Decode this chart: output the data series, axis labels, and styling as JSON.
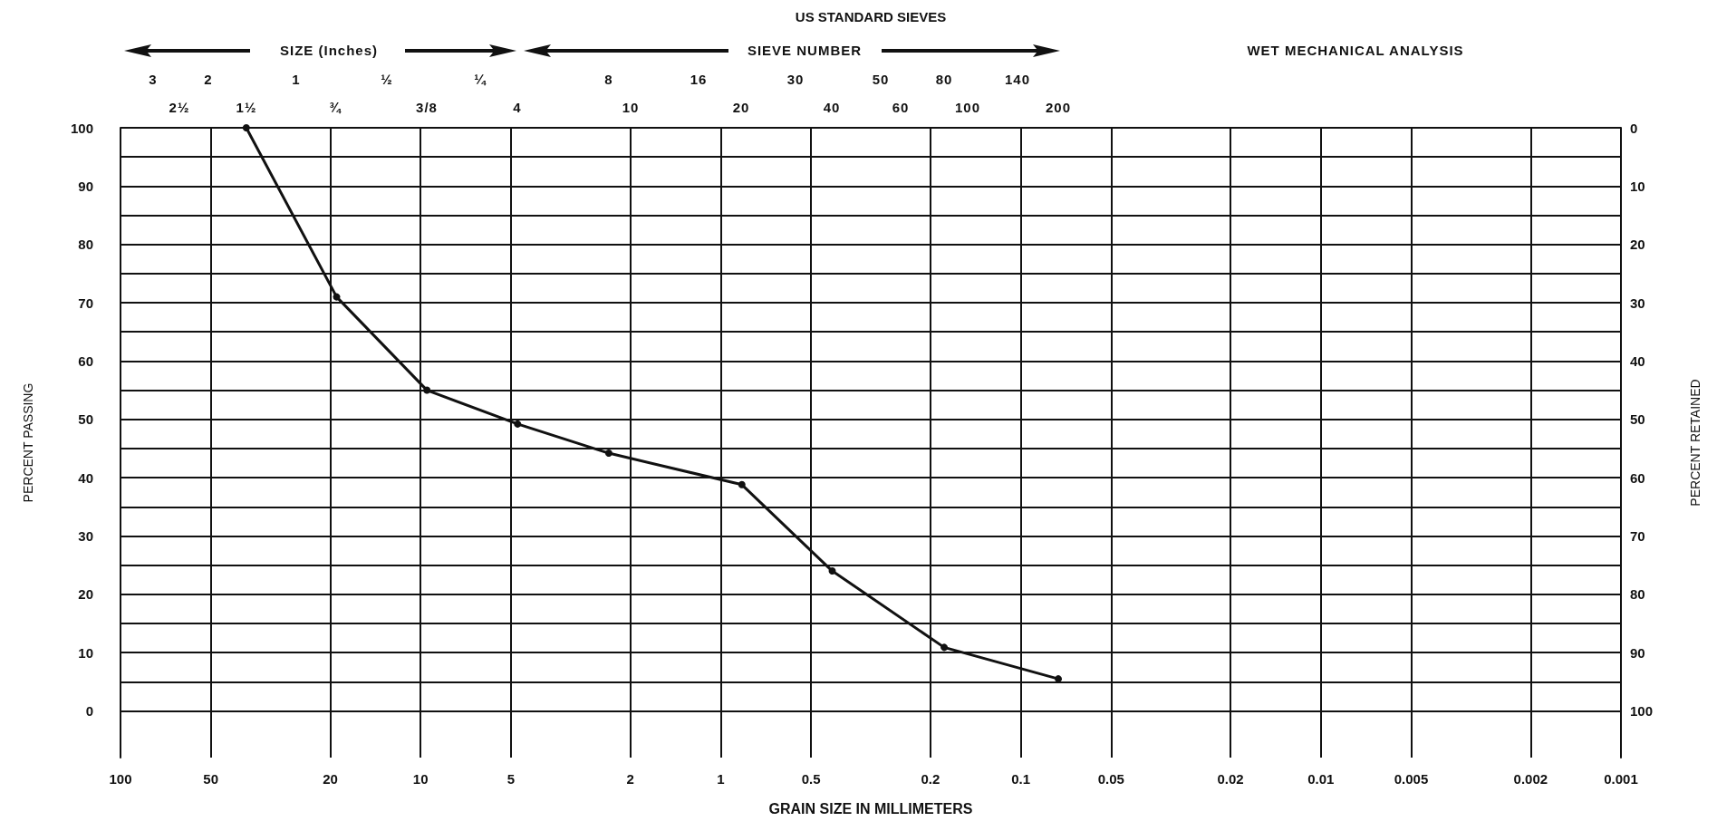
{
  "chart_data": {
    "type": "line",
    "title": "US STANDARD SIEVES",
    "xlabel": "GRAIN SIZE IN MILLIMETERS",
    "ylabel": "PERCENT PASSING",
    "y2label": "PERCENT RETAINED",
    "annotations": [
      "SIZE (Inches)",
      "SIEVE NUMBER",
      "WET MECHANICAL ANALYSIS",
      "3",
      "2",
      "1",
      "½",
      "¼",
      "8",
      "16",
      "30",
      "50",
      "80",
      "140",
      "2½",
      "1½",
      "¾",
      "3/8",
      "4",
      "10",
      "20",
      "40",
      "60",
      "100",
      "200"
    ],
    "x": [
      38.1,
      19.05,
      9.525,
      4.75,
      2.36,
      0.85,
      0.425,
      0.18,
      0.075
    ],
    "series": [
      {
        "color": "#111111",
        "values": [
          100,
          71,
          55,
          49.2,
          44.2,
          38.8,
          24,
          10.9,
          5.5
        ]
      }
    ],
    "log": "x",
    "marker": "circle",
    "line_style": "solid",
    "grid": true,
    "xlim": [
      100,
      0.001
    ],
    "xticks": [
      100,
      50,
      20,
      10,
      5,
      2,
      1,
      0.5,
      0.2,
      0.1,
      0.05,
      0.02,
      0.01,
      0.005,
      0.002,
      0.001
    ],
    "ylim": [
      -8,
      100
    ],
    "yticks": [
      0,
      {
        "value": 5,
        "label": null
      },
      10,
      {
        "value": 15,
        "label": null
      },
      20,
      {
        "value": 25,
        "label": null
      },
      30,
      {
        "value": 35,
        "label": null
      },
      40,
      {
        "value": 45,
        "label": null
      },
      50,
      {
        "value": 55,
        "label": null
      },
      60,
      {
        "value": 65,
        "label": null
      },
      70,
      {
        "value": 75,
        "label": null
      },
      80,
      {
        "value": 85,
        "label": null
      },
      90,
      {
        "value": 95,
        "label": null
      },
      100
    ],
    "y2lim": [
      108,
      0
    ],
    "y2ticks": [
      0,
      10,
      20,
      30,
      40,
      50,
      60,
      70,
      80,
      90,
      100
    ]
  }
}
